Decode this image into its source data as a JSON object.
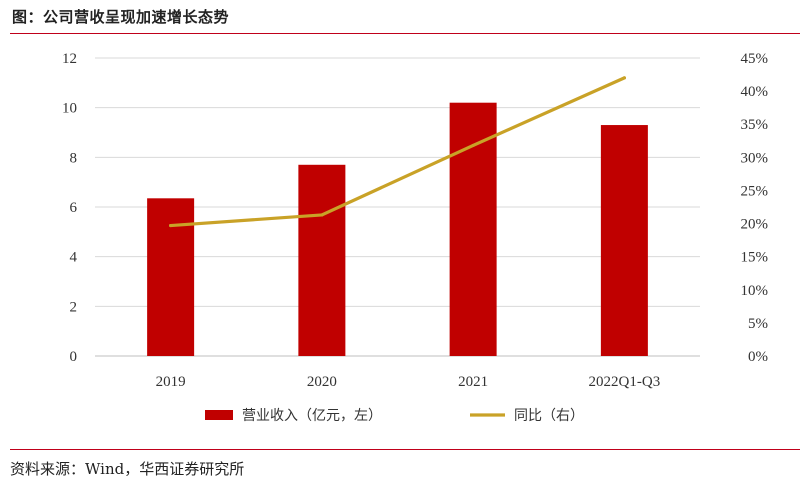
{
  "header": {
    "title": "图：公司营收呈现加速增长态势"
  },
  "footer": {
    "source": "资料来源：Wind，华西证券研究所"
  },
  "colors": {
    "bar": "#c00000",
    "line": "#c9a227",
    "accent_rule": "#c0001a",
    "grid": "#d9d9d9"
  },
  "chart_data": {
    "type": "bar",
    "categories": [
      "2019",
      "2020",
      "2021",
      "2022Q1-Q3"
    ],
    "series": [
      {
        "name": "营业收入（亿元，左）",
        "kind": "bar",
        "axis": "left",
        "values": [
          6.35,
          7.7,
          10.2,
          9.3
        ]
      },
      {
        "name": "同比（右）",
        "kind": "line",
        "axis": "right",
        "values": [
          19.7,
          21.3,
          31.8,
          42.0
        ]
      }
    ],
    "left_axis": {
      "ylim": [
        0,
        12
      ],
      "ticks": [
        "0",
        "2",
        "4",
        "6",
        "8",
        "10",
        "12"
      ]
    },
    "right_axis": {
      "ylim": [
        0,
        45
      ],
      "ticks": [
        "0%",
        "5%",
        "10%",
        "15%",
        "20%",
        "25%",
        "30%",
        "35%",
        "40%",
        "45%"
      ]
    },
    "grid": true,
    "legend": "bottom-center"
  }
}
